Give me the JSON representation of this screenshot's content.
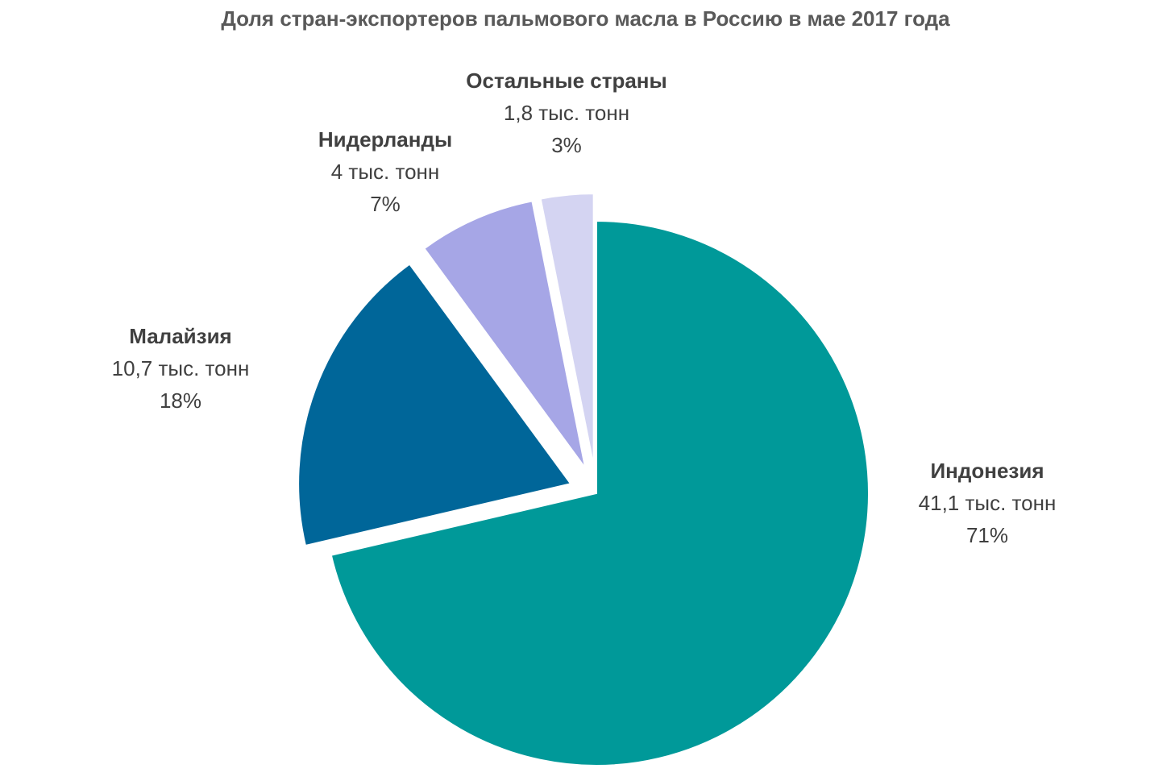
{
  "chart_data": {
    "type": "pie",
    "title": "Доля стран-экспортеров пальмового масла в Россию в мае 2017 года",
    "slices": [
      {
        "name": "Индонезия",
        "value_text": "41,1 тыс. тонн",
        "value": 41.1,
        "percent": 71,
        "percent_text": "71%",
        "color": "#009999"
      },
      {
        "name": "Малайзия",
        "value_text": "10,7 тыс. тонн",
        "value": 10.7,
        "percent": 18,
        "percent_text": "18%",
        "color": "#006699"
      },
      {
        "name": "Нидерланды",
        "value_text": "4 тыс. тонн",
        "value": 4,
        "percent": 7,
        "percent_text": "7%",
        "color": "#A6A6E6"
      },
      {
        "name": "Остальные страны",
        "value_text": "1,8 тыс. тонн",
        "value": 1.8,
        "percent": 3,
        "percent_text": "3%",
        "color": "#D4D4F2"
      }
    ]
  }
}
